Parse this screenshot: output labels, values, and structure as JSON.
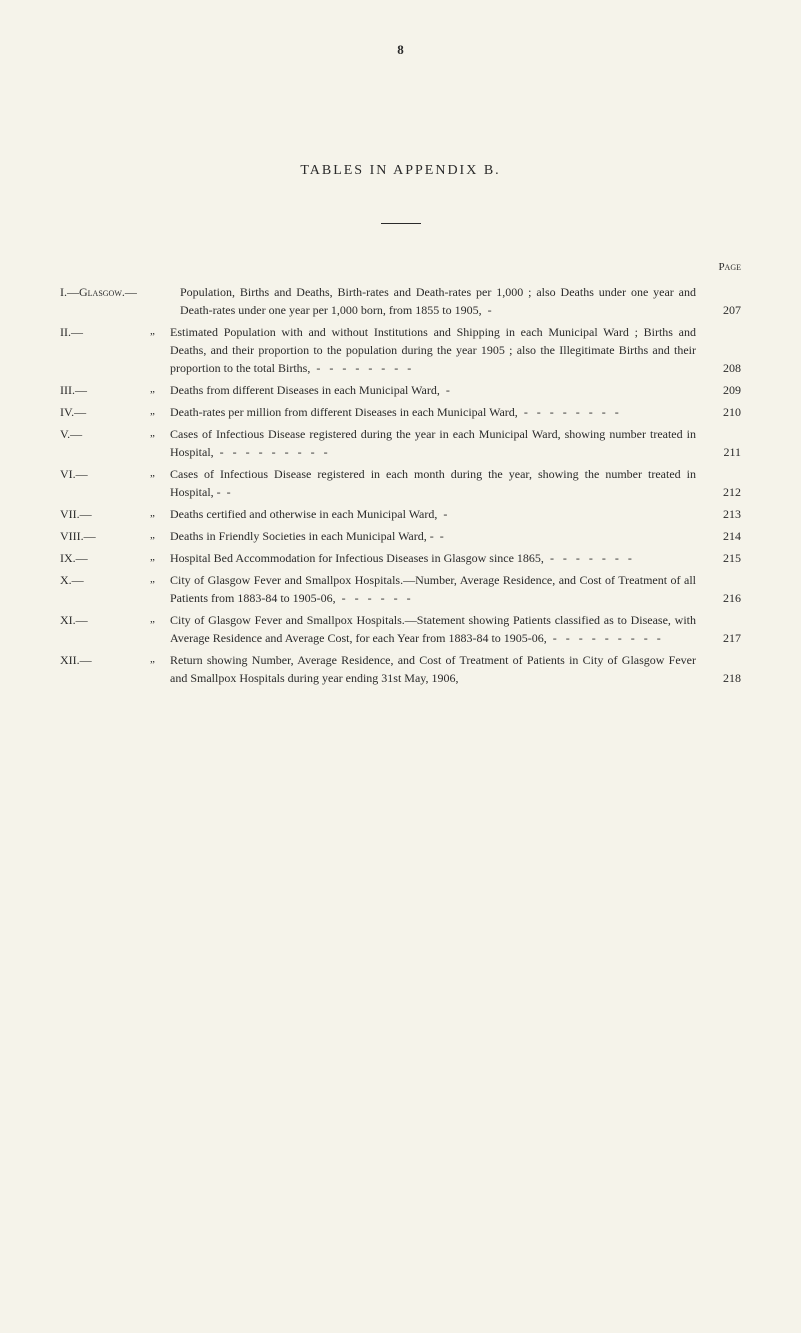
{
  "page_number": "8",
  "title": "TABLES IN APPENDIX B.",
  "page_header": "Page",
  "entries": [
    {
      "num": "I.—Glasgow.—",
      "ditto": "",
      "text": "Population, Births and Deaths, Birth-rates and Death-rates per 1,000 ; also Deaths under one year and Death-rates under one year per 1,000 born, from 1855 to 1905,",
      "dash": "     -",
      "page": "207",
      "smallcaps_word": "Glasgow"
    },
    {
      "num": "II.—",
      "ditto": "„",
      "text": "Estimated Population with and without Institutions and Shipping in each Municipal Ward ; Births and Deaths, and their proportion to the population during the year 1905 ; also the Illegitimate Births and their proportion to the total Births,",
      "dash": "   -   -   -   -   -   -   -   -",
      "page": "208"
    },
    {
      "num": "III.—",
      "ditto": "„",
      "text": "Deaths from different Diseases in each Municipal Ward,",
      "dash": "     -",
      "page": "209"
    },
    {
      "num": "IV.—",
      "ditto": "„",
      "text": "Death-rates per million from different Diseases in each Municipal Ward,",
      "dash": " -   -   -   -   -   -   -   -",
      "page": "210"
    },
    {
      "num": "V.—",
      "ditto": "„",
      "text": "Cases of Infectious Disease registered during the year in each Municipal Ward, showing number treated in Hospital,",
      "dash": "   -   -   -   -   -   -   -   -   -",
      "page": "211"
    },
    {
      "num": "VI.—",
      "ditto": "„",
      "text": "Cases of Infectious Disease registered in each month during the year, showing the number treated in Hospital, -",
      "dash": "     -",
      "page": "212"
    },
    {
      "num": "VII.—",
      "ditto": "„",
      "text": "Deaths certified and otherwise in each Municipal Ward,",
      "dash": "     -",
      "page": "213"
    },
    {
      "num": "VIII.—",
      "ditto": "„",
      "text": "Deaths in Friendly Societies in each Municipal Ward, -",
      "dash": "     -",
      "page": "214"
    },
    {
      "num": "IX.—",
      "ditto": "„",
      "text": "Hospital Bed Accommodation for Infectious Diseases in Glasgow since 1865,",
      "dash": "   -   -   -   -   -   -   -",
      "page": "215"
    },
    {
      "num": "X.—",
      "ditto": "„",
      "text": "City of Glasgow Fever and Smallpox Hospitals.—Number, Average Residence, and Cost of Treatment of all Patients from 1883-84 to 1905-06,",
      "dash": "   -   -   -   -   -   -",
      "page": "216"
    },
    {
      "num": "XI.—",
      "ditto": "„",
      "text": "City of Glasgow Fever and Smallpox Hospitals.—Statement showing Patients classified as to Disease, with Average Residence and Average Cost, for each Year from 1883-84 to 1905-06,",
      "dash": "   -   -   -   -   -   -   -   -   -",
      "page": "217"
    },
    {
      "num": "XII.—",
      "ditto": "„",
      "text": "Return showing Number, Average Residence, and Cost of Treatment of Patients in City of Glasgow Fever and Smallpox Hospitals during year ending 31st May, 1906,",
      "dash": "",
      "page": "218"
    }
  ]
}
